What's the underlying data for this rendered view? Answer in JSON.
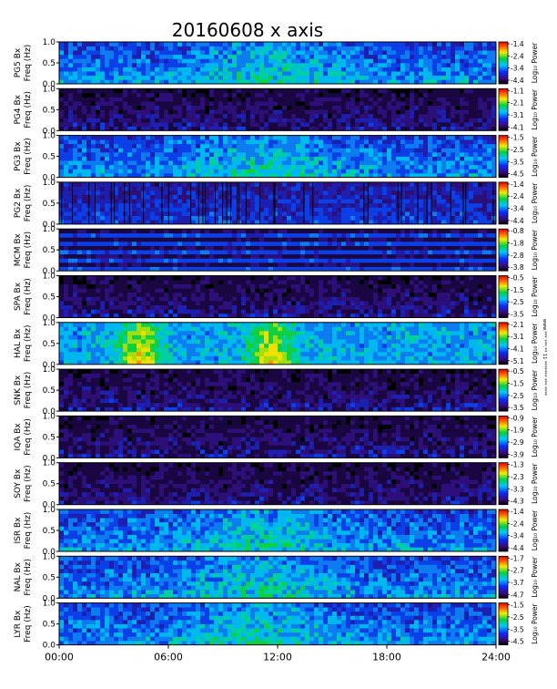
{
  "chart_data": {
    "type": "heatmap",
    "title": "20160608 x axis",
    "x": {
      "ticks": [
        "00:00",
        "06:00",
        "12:00",
        "18:00",
        "24:00"
      ],
      "range_hours": [
        0,
        24
      ]
    },
    "y_ticks": [
      "0.0",
      "0.5",
      "1.0"
    ],
    "colorbar_label": "Log₁₀ Power",
    "side_note": "www.***.***.** 11 ******* *** ****",
    "panels": [
      {
        "station": "PG5",
        "ylabel": "PG5 Bx",
        "ylabel2": "Freq (Hz)",
        "ylim": [
          0,
          1.0
        ],
        "cb_ticks": [
          "-1.4",
          "-2.4",
          "-3.4",
          "-4.4"
        ],
        "pattern": "noisy"
      },
      {
        "station": "PG4",
        "ylabel": "PG4 Bx",
        "ylabel2": "Freq (Hz)",
        "ylim": [
          0,
          1.0
        ],
        "cb_ticks": [
          "-1.1",
          "-2.1",
          "-3.1",
          "-4.1"
        ],
        "pattern": "dark"
      },
      {
        "station": "PG3",
        "ylabel": "PG3 Bx",
        "ylabel2": "Freq (Hz)",
        "ylim": [
          0,
          1.0
        ],
        "cb_ticks": [
          "-1.5",
          "-2.5",
          "-3.5",
          "-4.5"
        ],
        "pattern": "noisy"
      },
      {
        "station": "PG2",
        "ylabel": "PG2 Bx",
        "ylabel2": "Freq (Hz)",
        "ylim": [
          0,
          1.0
        ],
        "cb_ticks": [
          "-1.4",
          "-2.4",
          "-3.4",
          "-4.4"
        ],
        "pattern": "striped"
      },
      {
        "station": "MCM",
        "ylabel": "MCM Bx",
        "ylabel2": "Freq (Hz)",
        "ylim": [
          0,
          1.0
        ],
        "cb_ticks": [
          "-0.8",
          "-1.8",
          "-2.8",
          "-3.8"
        ],
        "pattern": "lines"
      },
      {
        "station": "SPA",
        "ylabel": "SPA Bx",
        "ylabel2": "Freq (Hz)",
        "ylim": [
          0,
          1.0
        ],
        "cb_ticks": [
          "-0.5",
          "-1.5",
          "-2.5",
          "-3.5"
        ],
        "pattern": "dark"
      },
      {
        "station": "HAL",
        "ylabel": "HAL Bx",
        "ylabel2": "Freq (Hz)",
        "ylim": [
          0,
          1.0
        ],
        "cb_ticks": [
          "-2.1",
          "-3.1",
          "-4.1",
          "-5.1"
        ],
        "pattern": "bright"
      },
      {
        "station": "SNK",
        "ylabel": "SNK Bx",
        "ylabel2": "Freq (Hz)",
        "ylim": [
          0,
          1.0
        ],
        "cb_ticks": [
          "-0.5",
          "-1.5",
          "-2.5",
          "-3.5"
        ],
        "pattern": "dark"
      },
      {
        "station": "IQA",
        "ylabel": "IQA Bx",
        "ylabel2": "Freq (Hz)",
        "ylim": [
          0,
          1.0
        ],
        "cb_ticks": [
          "-0.9",
          "-1.9",
          "-2.9",
          "-3.9"
        ],
        "pattern": "dark"
      },
      {
        "station": "SOY",
        "ylabel": "SOY Bx",
        "ylabel2": "Freq (Hz)",
        "ylim": [
          0,
          1.0
        ],
        "cb_ticks": [
          "-1.3",
          "-2.3",
          "-3.3",
          "-4.3"
        ],
        "pattern": "dark"
      },
      {
        "station": "ISR",
        "ylabel": "ISR Bx",
        "ylabel2": "Freq (Hz)",
        "ylim": [
          0,
          1.0
        ],
        "cb_ticks": [
          "-1.4",
          "-2.4",
          "-3.4",
          "-4.4"
        ],
        "pattern": "noisy"
      },
      {
        "station": "NAL",
        "ylabel": "NAL Bx",
        "ylabel2": "Freq (Hz)",
        "ylim": [
          0,
          1.0
        ],
        "cb_ticks": [
          "-1.7",
          "-2.7",
          "-3.7",
          "-4.7"
        ],
        "pattern": "noisy"
      },
      {
        "station": "LYR",
        "ylabel": "LYR Bx",
        "ylabel2": "Freq (Hz)",
        "ylim": [
          0,
          1.0
        ],
        "cb_ticks": [
          "-1.5",
          "-2.5",
          "-3.5",
          "-4.5"
        ],
        "pattern": "noisy"
      }
    ]
  }
}
